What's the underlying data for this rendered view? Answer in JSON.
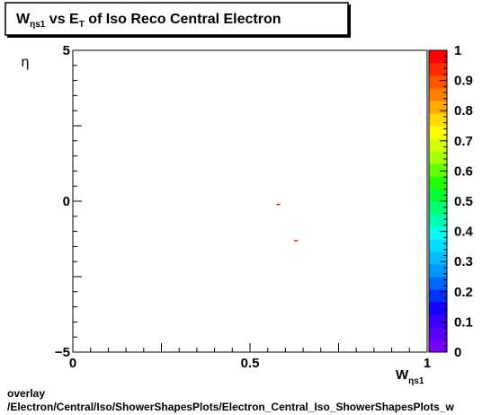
{
  "chart_data": {
    "type": "heatmap",
    "title": {
      "main": "W",
      "main_sub": "ηs1",
      "mid": " vs E",
      "mid_sub": "T",
      "rest": " of Iso Reco Central  Electron"
    },
    "xlabel": {
      "main": "W",
      "sub": "ηs1"
    },
    "ylabel": "η",
    "xlim": [
      0,
      1
    ],
    "ylim": [
      -5,
      5
    ],
    "x_ticks": [
      {
        "value": 0,
        "label": "0"
      },
      {
        "value": 0.5,
        "label": "0.5"
      },
      {
        "value": 1,
        "label": "1"
      }
    ],
    "y_ticks": [
      {
        "value": -5,
        "label": "−5"
      },
      {
        "value": 0,
        "label": "0"
      },
      {
        "value": 5,
        "label": "5"
      }
    ],
    "zlim": [
      0,
      1
    ],
    "z_ticks": [
      "0",
      "0.1",
      "0.2",
      "0.3",
      "0.4",
      "0.5",
      "0.6",
      "0.7",
      "0.8",
      "0.9",
      "1"
    ],
    "palette": [
      "#7a00ff",
      "#5b00ff",
      "#3a00ff",
      "#1500ff",
      "#0033ff",
      "#0066ff",
      "#0099ff",
      "#00bbff",
      "#00ddff",
      "#00ffee",
      "#00ffb0",
      "#00ff70",
      "#00ff30",
      "#22ff00",
      "#66ff00",
      "#a6ff00",
      "#d8ff00",
      "#ffff00",
      "#ffd800",
      "#ffaa00",
      "#ff8000",
      "#ff5500",
      "#ff2a00",
      "#ff0000"
    ],
    "points": [
      {
        "x": 0.58,
        "y": -0.1,
        "z": 1.0
      },
      {
        "x": 0.63,
        "y": -1.3,
        "z": 1.0
      }
    ],
    "grid": false,
    "legend": "colorbar-right"
  },
  "footer": {
    "line1": "overlay",
    "line2": "/Electron/Central/Iso/ShowerShapesPlots/Electron_Central_Iso_ShowerShapesPlots_w"
  }
}
